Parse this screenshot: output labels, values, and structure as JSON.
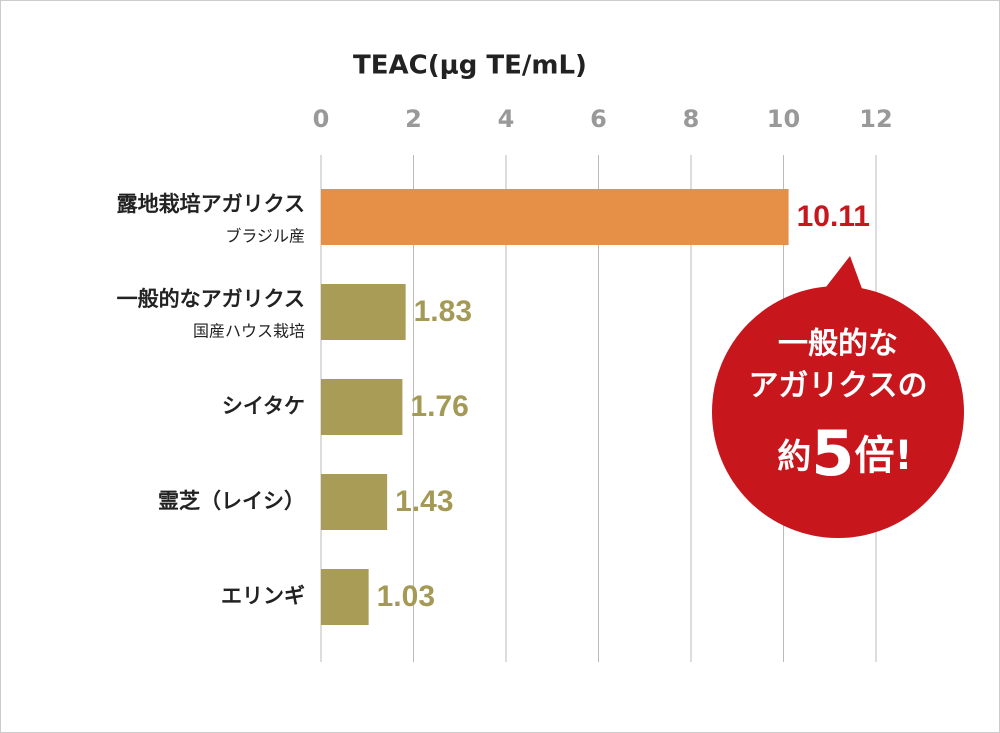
{
  "chart_data": {
    "type": "bar",
    "orientation": "horizontal",
    "x_label": "TEAC(μg TE/mL)",
    "categories": [
      "露地栽培アガリクス",
      "一般的なアガリクス",
      "シイタケ",
      "霊芝（レイシ）",
      "エリンギ"
    ],
    "sublabels": [
      "ブラジル産",
      "国産ハウス栽培",
      null,
      null,
      null
    ],
    "values": [
      10.11,
      1.83,
      1.76,
      1.43,
      1.03
    ],
    "colors": [
      "#e58f47",
      "#a89c57",
      "#a89c57",
      "#a89c57",
      "#a89c57"
    ],
    "label_colors": [
      "#c8161d",
      "#a49a55",
      "#a49a55",
      "#a49a55",
      "#a49a55"
    ],
    "xlim": [
      0,
      12
    ],
    "xticks": [
      0,
      2,
      4,
      6,
      8,
      10,
      12
    ],
    "grid": true,
    "annotation": {
      "lines": [
        "一般的な",
        "アガリクスの"
      ],
      "emphasis": [
        "約",
        "5",
        "倍!"
      ],
      "color": "#c8161d"
    }
  }
}
